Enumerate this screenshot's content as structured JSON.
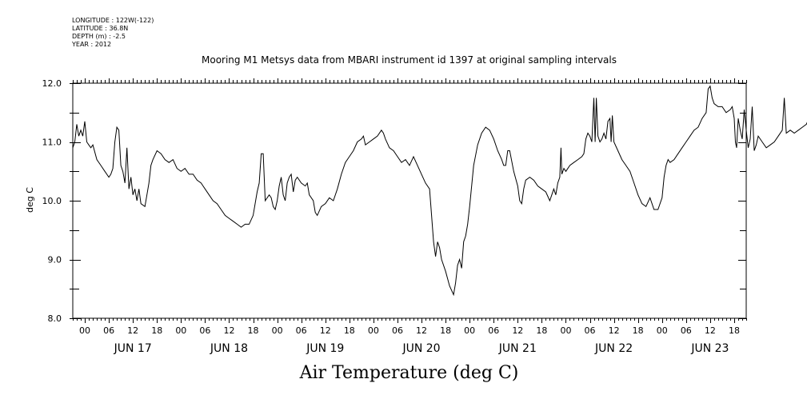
{
  "header": {
    "longitude": "LONGITUDE : 122W(-122)",
    "latitude": "LATITUDE : 36.8N",
    "depth": "DEPTH (m) : -2.5",
    "year": "YEAR : 2012"
  },
  "chart_data": {
    "type": "line",
    "title": "Mooring M1 Metsys data from MBARI instrument id 1397 at original sampling intervals",
    "xlabel": "Air Temperature (deg C)",
    "ylabel": "deg C",
    "ylim": [
      8.0,
      12.0
    ],
    "xlim_hours": [
      -3,
      165
    ],
    "y_ticks": [
      "8.0",
      "9.0",
      "10.0",
      "11.0",
      "12.0"
    ],
    "hour_tick_labels": [
      "00",
      "06",
      "12",
      "18"
    ],
    "day_labels": [
      "JUN 17",
      "JUN 18",
      "JUN 19",
      "JUN 20",
      "JUN 21",
      "JUN 22",
      "JUN 23"
    ],
    "grid": false,
    "series": [
      {
        "values": [
          [
            -3,
            10.9
          ],
          [
            -2.5,
            11.0
          ],
          [
            -2,
            11.3
          ],
          [
            -1.5,
            11.1
          ],
          [
            -1,
            11.2
          ],
          [
            -0.5,
            11.1
          ],
          [
            0,
            11.35
          ],
          [
            0.5,
            11.0
          ],
          [
            1,
            10.95
          ],
          [
            1.5,
            10.9
          ],
          [
            2,
            10.95
          ],
          [
            3,
            10.7
          ],
          [
            4,
            10.6
          ],
          [
            5,
            10.5
          ],
          [
            6,
            10.4
          ],
          [
            6.5,
            10.45
          ],
          [
            7,
            10.55
          ],
          [
            7.5,
            11.0
          ],
          [
            8,
            11.25
          ],
          [
            8.5,
            11.2
          ],
          [
            9,
            10.6
          ],
          [
            9.5,
            10.5
          ],
          [
            10,
            10.3
          ],
          [
            10.5,
            10.9
          ],
          [
            11,
            10.2
          ],
          [
            11.5,
            10.4
          ],
          [
            12,
            10.1
          ],
          [
            12.5,
            10.2
          ],
          [
            13,
            10.0
          ],
          [
            13.5,
            10.2
          ],
          [
            14,
            9.95
          ],
          [
            15,
            9.9
          ],
          [
            15.5,
            10.1
          ],
          [
            16,
            10.3
          ],
          [
            16.5,
            10.6
          ],
          [
            17,
            10.7
          ],
          [
            18,
            10.85
          ],
          [
            19,
            10.8
          ],
          [
            20,
            10.7
          ],
          [
            21,
            10.65
          ],
          [
            22,
            10.7
          ],
          [
            23,
            10.55
          ],
          [
            24,
            10.5
          ],
          [
            25,
            10.55
          ],
          [
            26,
            10.45
          ],
          [
            27,
            10.45
          ],
          [
            28,
            10.35
          ],
          [
            29,
            10.3
          ],
          [
            30,
            10.2
          ],
          [
            31,
            10.1
          ],
          [
            32,
            10.0
          ],
          [
            33,
            9.95
          ],
          [
            34,
            9.85
          ],
          [
            35,
            9.75
          ],
          [
            36,
            9.7
          ],
          [
            37,
            9.65
          ],
          [
            38,
            9.6
          ],
          [
            39,
            9.55
          ],
          [
            40,
            9.6
          ],
          [
            41,
            9.6
          ],
          [
            42,
            9.75
          ],
          [
            43,
            10.15
          ],
          [
            43.5,
            10.3
          ],
          [
            44,
            10.8
          ],
          [
            44.5,
            10.8
          ],
          [
            45,
            10.0
          ],
          [
            45.5,
            10.05
          ],
          [
            46,
            10.1
          ],
          [
            46.5,
            10.05
          ],
          [
            47,
            9.9
          ],
          [
            47.5,
            9.85
          ],
          [
            48,
            10.0
          ],
          [
            48.5,
            10.25
          ],
          [
            49,
            10.4
          ],
          [
            49.5,
            10.1
          ],
          [
            50,
            10.0
          ],
          [
            50.5,
            10.3
          ],
          [
            51,
            10.4
          ],
          [
            51.5,
            10.45
          ],
          [
            52,
            10.15
          ],
          [
            52.5,
            10.35
          ],
          [
            53,
            10.4
          ],
          [
            54,
            10.3
          ],
          [
            55,
            10.25
          ],
          [
            55.5,
            10.3
          ],
          [
            56,
            10.1
          ],
          [
            57,
            10.0
          ],
          [
            57.5,
            9.8
          ],
          [
            58,
            9.75
          ],
          [
            59,
            9.9
          ],
          [
            60,
            9.95
          ],
          [
            61,
            10.05
          ],
          [
            62,
            10.0
          ],
          [
            63,
            10.2
          ],
          [
            64,
            10.45
          ],
          [
            65,
            10.65
          ],
          [
            66,
            10.75
          ],
          [
            67,
            10.85
          ],
          [
            68,
            11.0
          ],
          [
            69,
            11.05
          ],
          [
            69.5,
            11.1
          ],
          [
            70,
            10.95
          ],
          [
            71,
            11.0
          ],
          [
            72,
            11.05
          ],
          [
            73,
            11.1
          ],
          [
            74,
            11.2
          ],
          [
            74.5,
            11.15
          ],
          [
            75,
            11.05
          ],
          [
            76,
            10.9
          ],
          [
            77,
            10.85
          ],
          [
            78,
            10.75
          ],
          [
            79,
            10.65
          ],
          [
            80,
            10.7
          ],
          [
            81,
            10.6
          ],
          [
            82,
            10.75
          ],
          [
            83,
            10.6
          ],
          [
            84,
            10.45
          ],
          [
            85,
            10.3
          ],
          [
            86,
            10.2
          ],
          [
            87,
            9.3
          ],
          [
            87.5,
            9.05
          ],
          [
            88,
            9.3
          ],
          [
            88.5,
            9.2
          ],
          [
            89,
            9.0
          ],
          [
            90,
            8.8
          ],
          [
            91,
            8.55
          ],
          [
            92,
            8.4
          ],
          [
            92.5,
            8.6
          ],
          [
            93,
            8.9
          ],
          [
            93.5,
            9.0
          ],
          [
            94,
            8.85
          ],
          [
            94.5,
            9.3
          ],
          [
            95,
            9.4
          ],
          [
            95.5,
            9.6
          ],
          [
            96,
            9.9
          ],
          [
            97,
            10.6
          ],
          [
            98,
            10.95
          ],
          [
            99,
            11.15
          ],
          [
            100,
            11.25
          ],
          [
            101,
            11.2
          ],
          [
            102,
            11.05
          ],
          [
            103,
            10.85
          ],
          [
            104,
            10.7
          ],
          [
            104.5,
            10.6
          ],
          [
            105,
            10.6
          ],
          [
            105.5,
            10.85
          ],
          [
            106,
            10.85
          ],
          [
            107,
            10.5
          ],
          [
            108,
            10.25
          ],
          [
            108.5,
            10.0
          ],
          [
            109,
            9.95
          ],
          [
            109.5,
            10.2
          ],
          [
            110,
            10.35
          ],
          [
            111,
            10.4
          ],
          [
            112,
            10.35
          ],
          [
            113,
            10.25
          ],
          [
            114,
            10.2
          ],
          [
            115,
            10.15
          ],
          [
            116,
            10.0
          ],
          [
            116.5,
            10.1
          ],
          [
            117,
            10.2
          ],
          [
            117.5,
            10.1
          ],
          [
            118,
            10.3
          ],
          [
            118.5,
            10.4
          ],
          [
            118.8,
            10.9
          ],
          [
            119,
            10.45
          ],
          [
            119.5,
            10.55
          ],
          [
            120,
            10.5
          ],
          [
            121,
            10.6
          ],
          [
            122,
            10.65
          ],
          [
            123,
            10.7
          ],
          [
            124,
            10.75
          ],
          [
            124.5,
            10.8
          ],
          [
            125,
            11.05
          ],
          [
            125.5,
            11.15
          ],
          [
            126,
            11.1
          ],
          [
            126.5,
            11.0
          ],
          [
            127,
            11.75
          ],
          [
            127.3,
            11.0
          ],
          [
            127.6,
            11.75
          ],
          [
            128,
            11.1
          ],
          [
            128.5,
            11.0
          ],
          [
            129,
            11.05
          ],
          [
            129.5,
            11.15
          ],
          [
            130,
            11.05
          ],
          [
            130.5,
            11.35
          ],
          [
            131,
            11.4
          ],
          [
            131.3,
            11.0
          ],
          [
            131.6,
            11.45
          ],
          [
            132,
            11.0
          ],
          [
            133,
            10.85
          ],
          [
            134,
            10.7
          ],
          [
            135,
            10.6
          ],
          [
            136,
            10.5
          ],
          [
            137,
            10.3
          ],
          [
            138,
            10.1
          ],
          [
            139,
            9.95
          ],
          [
            140,
            9.9
          ],
          [
            141,
            10.05
          ],
          [
            142,
            9.85
          ],
          [
            143,
            9.85
          ],
          [
            144,
            10.05
          ],
          [
            144.5,
            10.4
          ],
          [
            145,
            10.6
          ],
          [
            145.5,
            10.7
          ],
          [
            146,
            10.65
          ],
          [
            147,
            10.7
          ],
          [
            148,
            10.8
          ],
          [
            149,
            10.9
          ],
          [
            150,
            11.0
          ],
          [
            151,
            11.1
          ],
          [
            152,
            11.2
          ],
          [
            153,
            11.25
          ],
          [
            154,
            11.4
          ],
          [
            155,
            11.5
          ],
          [
            155.5,
            11.9
          ],
          [
            156,
            11.95
          ],
          [
            156.5,
            11.75
          ],
          [
            157,
            11.65
          ],
          [
            158,
            11.6
          ],
          [
            159,
            11.6
          ],
          [
            160,
            11.5
          ],
          [
            161,
            11.55
          ],
          [
            161.5,
            11.6
          ],
          [
            162,
            11.4
          ],
          [
            162.3,
            11.0
          ],
          [
            162.6,
            10.9
          ],
          [
            163,
            11.4
          ],
          [
            163.5,
            11.2
          ],
          [
            164,
            11.05
          ],
          [
            164.5,
            11.55
          ],
          [
            165,
            11.2
          ],
          [
            165.5,
            10.9
          ],
          [
            166,
            11.05
          ],
          [
            166.5,
            11.6
          ],
          [
            167,
            10.85
          ],
          [
            167.5,
            10.95
          ],
          [
            168,
            11.1
          ],
          [
            169,
            11.0
          ],
          [
            170,
            10.9
          ],
          [
            171,
            10.95
          ],
          [
            172,
            11.0
          ],
          [
            173,
            11.1
          ],
          [
            174,
            11.2
          ],
          [
            174.5,
            11.75
          ],
          [
            175,
            11.15
          ],
          [
            176,
            11.2
          ],
          [
            177,
            11.15
          ],
          [
            178,
            11.2
          ],
          [
            179,
            11.25
          ],
          [
            180,
            11.3
          ],
          [
            181,
            11.45
          ]
        ]
      }
    ]
  }
}
